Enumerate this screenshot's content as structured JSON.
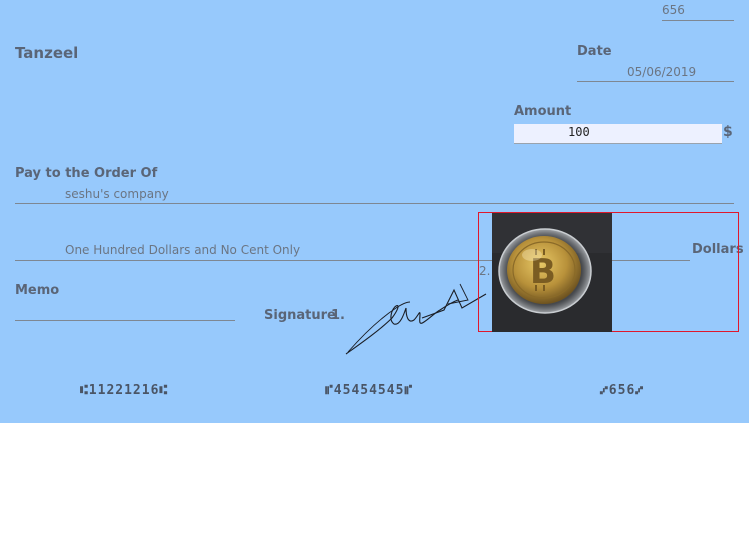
{
  "check": {
    "check_number": "656",
    "payer_name": "Tanzeel",
    "date_label": "Date",
    "date_value": "05/06/2019",
    "amount_label": "Amount",
    "amount_value": "100",
    "currency_symbol": "$",
    "pay_to_label": "Pay to the Order Of",
    "payee": "seshu's company",
    "amount_words": "One Hundred Dollars and No Cent Only",
    "dollars_label": "Dollars",
    "memo_label": "Memo",
    "memo_value": "",
    "signature_label": "Signature",
    "signature_1_marker": "1.",
    "signature_2_marker": "2.",
    "micr_routing": "⑆11221216⑆",
    "micr_account": "⑈45454545⑈",
    "micr_check": "⑇656⑇"
  },
  "colors": {
    "check_background": "#97c9fc",
    "highlight_border": "#e0182c"
  },
  "icons": {
    "attached_image": "bitcoin-coin-photo"
  }
}
